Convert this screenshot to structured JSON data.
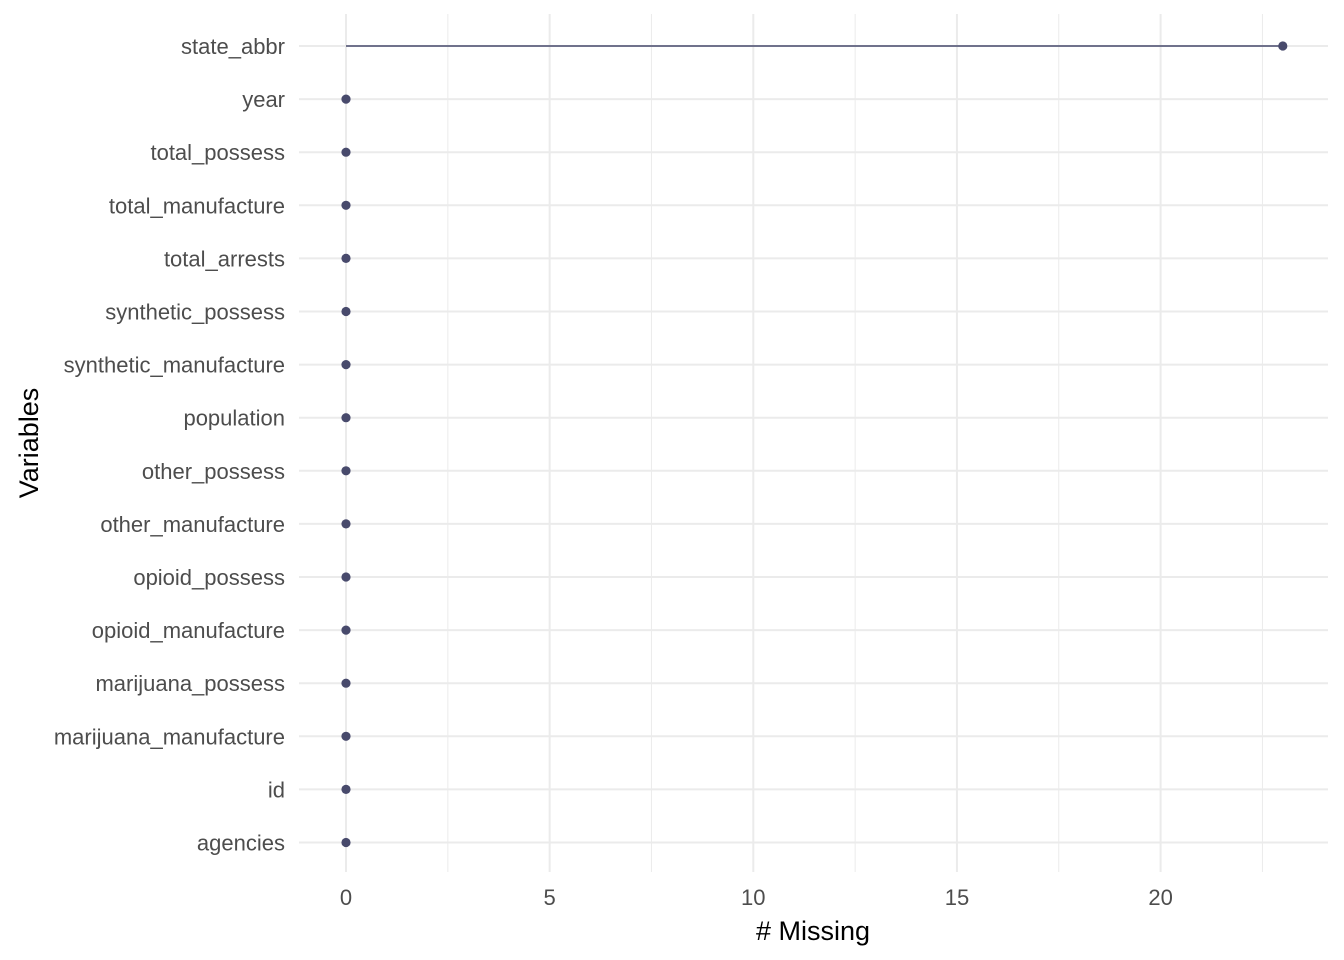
{
  "chart_data": {
    "type": "lollipop",
    "xlabel": "# Missing",
    "ylabel": "Variables",
    "xlim": [
      0,
      23
    ],
    "xticks": [
      0,
      5,
      10,
      15,
      20
    ],
    "categories": [
      "state_abbr",
      "year",
      "total_possess",
      "total_manufacture",
      "total_arrests",
      "synthetic_possess",
      "synthetic_manufacture",
      "population",
      "other_possess",
      "other_manufacture",
      "opioid_possess",
      "opioid_manufacture",
      "marijuana_possess",
      "marijuana_manufacture",
      "id",
      "agencies"
    ],
    "values": [
      23,
      0,
      0,
      0,
      0,
      0,
      0,
      0,
      0,
      0,
      0,
      0,
      0,
      0,
      0,
      0
    ],
    "color": "#484a6c",
    "grid": true
  }
}
